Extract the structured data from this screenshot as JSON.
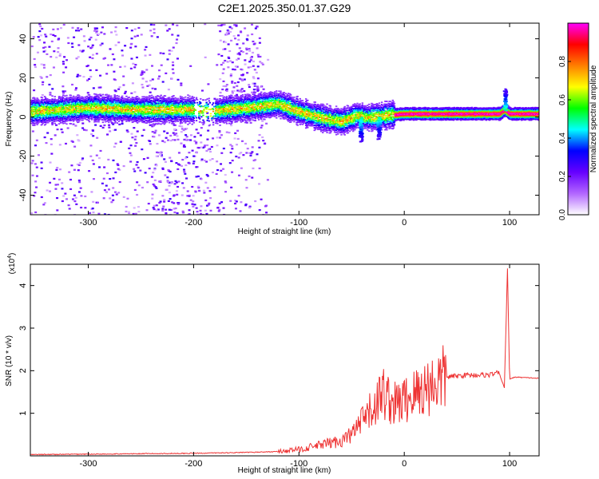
{
  "title": "C2E1.2025.350.01.37.G29",
  "chart_data": [
    {
      "type": "heatmap",
      "xlabel": "Height of straight line (km)",
      "ylabel": "Frequency (Hz)",
      "xlim": [
        -355,
        128
      ],
      "ylim": [
        -50,
        48
      ],
      "xticks": [
        -300,
        -200,
        -100,
        0,
        100
      ],
      "yticks": [
        -40,
        -20,
        0,
        20,
        40
      ],
      "colorbar": {
        "label": "Normalized spectral amplitude",
        "range": [
          0,
          1
        ],
        "ticks": [
          "0.0",
          "0.2",
          "0.4",
          "0.6",
          "0.8"
        ],
        "tick_values": [
          0,
          0.2,
          0.4,
          0.6,
          0.8
        ],
        "colors": [
          "#ffffff",
          "#b266ff",
          "#6600ff",
          "#0000ff",
          "#00ffff",
          "#00ff00",
          "#ffff00",
          "#ff7f00",
          "#ff0000",
          "#ff00ff"
        ]
      },
      "ridge_line": {
        "x": [
          -355,
          -300,
          -250,
          -200,
          -185,
          -170,
          -150,
          -120,
          -100,
          -80,
          -60,
          -45,
          -35,
          -20,
          0,
          50,
          90,
          95,
          100,
          128
        ],
        "y": [
          3,
          5,
          4,
          4,
          3,
          4,
          5,
          7,
          3,
          0,
          -2,
          1,
          0,
          1,
          2,
          2,
          2,
          4,
          2,
          2
        ]
      }
    },
    {
      "type": "line",
      "xlabel": "Height of straight line (km)",
      "ylabel": "SNR (10 * v/v)",
      "y_multiplier": "(x10^4)",
      "y_multiplier_base": "(x10",
      "y_multiplier_exp": "4",
      "y_multiplier_close": ")",
      "xlim": [
        -355,
        128
      ],
      "ylim": [
        0,
        4.5
      ],
      "xticks": [
        -300,
        -200,
        -100,
        0,
        100
      ],
      "yticks": [
        1,
        2,
        3,
        4
      ],
      "color": "#ee3333",
      "series": [
        {
          "x": [
            -355,
            -300,
            -250,
            -200,
            -150,
            -120,
            -100,
            -80,
            -60,
            -50,
            -40,
            -30,
            -20,
            -10,
            0,
            20,
            40,
            60,
            80,
            90,
            95,
            98,
            100,
            105,
            128
          ],
          "y": [
            0.03,
            0.04,
            0.05,
            0.06,
            0.08,
            0.1,
            0.15,
            0.25,
            0.35,
            0.5,
            0.8,
            1.1,
            1.5,
            1.2,
            1.3,
            1.6,
            1.85,
            1.9,
            1.9,
            1.95,
            1.6,
            4.4,
            1.8,
            1.85,
            1.82
          ]
        }
      ]
    }
  ]
}
